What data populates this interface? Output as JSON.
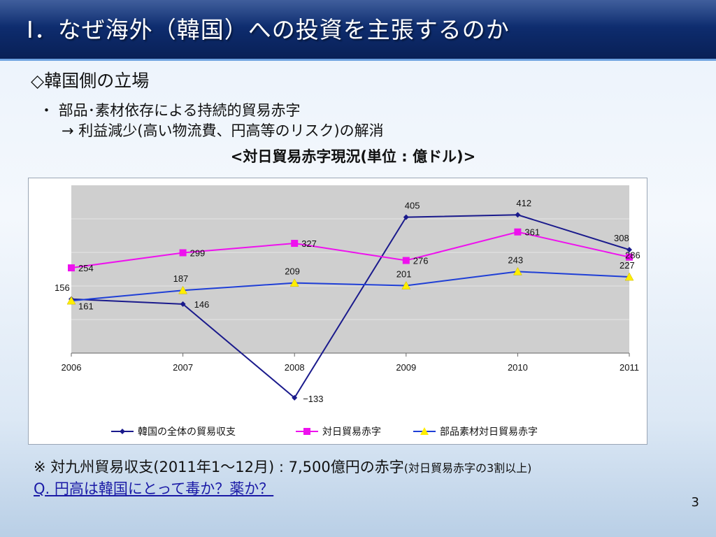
{
  "slide": {
    "title": "Ⅰ．なぜ海外（韓国）への投資を主張するのか",
    "heading": "◇韓国側の立場",
    "bullet1": "・ 部品･素材依存による持続的貿易赤字",
    "bullet2": "→ 利益減少(高い物流費、円高等のリスク)の解消",
    "chart_title": "<対日貿易赤字現況(単位 : 億ドル)>",
    "note1_main": "※ 対九州貿易収支(2011年1～12月) : 7,500億円の赤字",
    "note1_small": "(対日貿易赤字の3割以上)",
    "note2": "Q. 円高は韓国にとって毒か？薬か？",
    "page_number": "3"
  },
  "chart_data": {
    "type": "line",
    "x": [
      "2006",
      "2007",
      "2008",
      "2009",
      "2010",
      "2011"
    ],
    "ylim": [
      -150,
      500
    ],
    "grid": true,
    "legend_position": "bottom",
    "series": [
      {
        "name": "韓国の全体の貿易収支",
        "values": [
          161,
          146,
          -133,
          405,
          412,
          308
        ],
        "color": "#1a1a8c",
        "marker": "diamond"
      },
      {
        "name": "対日貿易赤字",
        "values": [
          254,
          299,
          327,
          276,
          361,
          286
        ],
        "color": "#ee11ee",
        "marker": "square"
      },
      {
        "name": "部品素材対日貿易赤字",
        "values": [
          156,
          187,
          209,
          201,
          243,
          227
        ],
        "color": "#1f3fd6",
        "marker": "triangle",
        "marker_color": "#ffee00"
      }
    ]
  }
}
